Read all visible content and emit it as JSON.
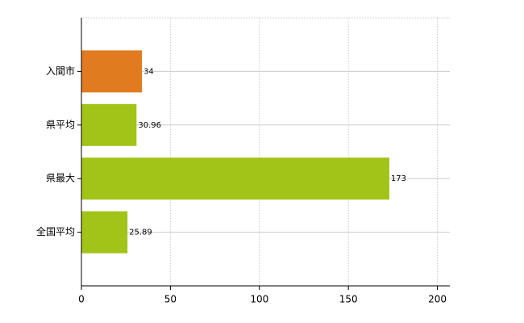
{
  "chart_data": {
    "type": "bar",
    "orientation": "horizontal",
    "categories": [
      "入間市",
      "県平均",
      "県最大",
      "全国平均"
    ],
    "values": [
      34,
      30.96,
      173,
      25.89
    ],
    "colors": [
      "#e07b20",
      "#a2c419",
      "#a2c419",
      "#a2c419"
    ],
    "xlim": [
      0,
      207
    ],
    "xticks": [
      0,
      50,
      100,
      150,
      200
    ],
    "grid": true
  }
}
